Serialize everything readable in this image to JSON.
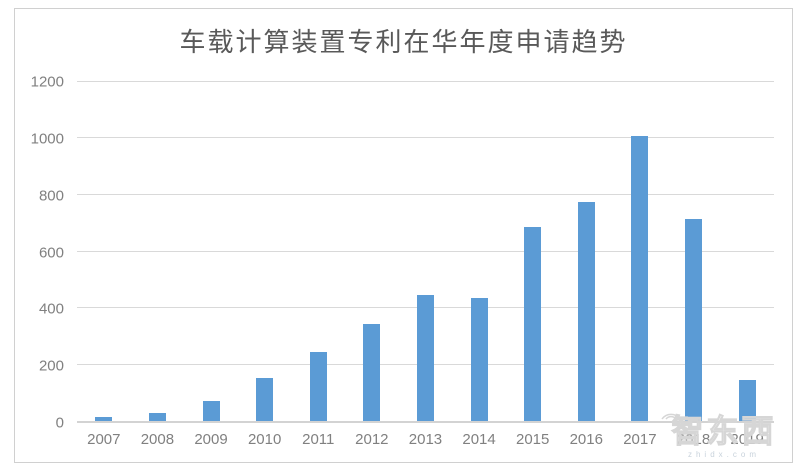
{
  "chart_data": {
    "type": "bar",
    "title": "车载计算装置专利在华年度申请趋势",
    "categories": [
      "2007",
      "2008",
      "2009",
      "2010",
      "2011",
      "2012",
      "2013",
      "2014",
      "2015",
      "2016",
      "2017",
      "2018",
      "2019"
    ],
    "values": [
      13,
      28,
      70,
      153,
      245,
      345,
      447,
      435,
      688,
      777,
      1010,
      716,
      144
    ],
    "xlabel": "",
    "ylabel": "",
    "ylim": [
      0,
      1200
    ],
    "ytick_step": 200,
    "yticks": [
      0,
      200,
      400,
      600,
      800,
      1000,
      1200
    ],
    "grid": true,
    "legend": false
  },
  "colors": {
    "bar": "#5B9BD5",
    "grid_line": "#D9D9D9",
    "axis_line": "#D3D3D3",
    "tick_label": "#808080",
    "title": "#595959",
    "frame_border": "#D0D0D0",
    "watermark": "#D6D6D6"
  },
  "watermark": {
    "logo_text": "智东西",
    "sub_text": "zhidx.com"
  }
}
